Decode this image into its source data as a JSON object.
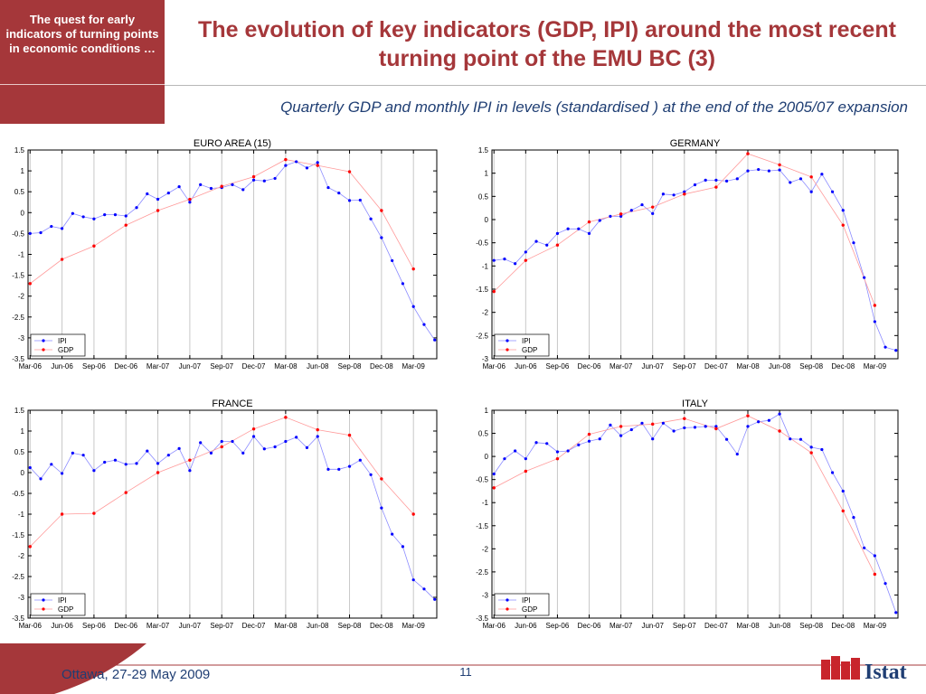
{
  "sidebar": {
    "text": "The quest for early indicators of turning points in economic conditions …"
  },
  "title": "The evolution of key indicators (GDP, IPI) around the most recent  turning point of the EMU BC (3)",
  "subtitle": "Quarterly GDP and monthly IPI in levels (standardised ) at the end of the 2005/07 expansion",
  "footer": {
    "text": "Ottawa, 27-29 May 2009",
    "page": "11",
    "logo_text": "Istat"
  },
  "colors": {
    "brand": "#a5373a",
    "ipi": "#0000ff",
    "gdp": "#ff0000",
    "text_blue": "#1f3e73"
  },
  "chart_data": [
    {
      "type": "line",
      "title": "EURO AREA (15)",
      "xticks": [
        "Mar-06",
        "Jun-06",
        "Sep-06",
        "Dec-06",
        "Mar-07",
        "Jun-07",
        "Sep-07",
        "Dec-07",
        "Mar-08",
        "Jun-08",
        "Sep-08",
        "Dec-08",
        "Mar-09"
      ],
      "yticks": [
        "1.5",
        "1",
        "0.5",
        "0",
        "-0.5",
        "-1",
        "-1.5",
        "-2",
        "-2.5",
        "-3",
        "-3.5"
      ],
      "ylim": [
        -3.5,
        1.5
      ],
      "legend": [
        "IPI",
        "GDP"
      ],
      "legend_position": "bottom-left",
      "series": [
        {
          "name": "IPI",
          "values": [
            -0.5,
            -0.48,
            -0.33,
            -0.38,
            -0.02,
            -0.1,
            -0.15,
            -0.05,
            -0.05,
            -0.08,
            0.12,
            0.45,
            0.32,
            0.47,
            0.62,
            0.25,
            0.67,
            0.58,
            0.6,
            0.67,
            0.55,
            0.78,
            0.76,
            0.82,
            1.13,
            1.22,
            1.07,
            1.2,
            0.6,
            0.47,
            0.29,
            0.3,
            -0.15,
            -0.6,
            -1.15,
            -1.7,
            -2.25,
            -2.68,
            -3.05
          ]
        },
        {
          "name": "GDP",
          "values": [
            -1.7,
            -1.12,
            -0.8,
            -0.3,
            0.05,
            0.32,
            0.63,
            0.86,
            1.27,
            1.13,
            0.98,
            0.05,
            -1.35
          ]
        }
      ]
    },
    {
      "type": "line",
      "title": "GERMANY",
      "xticks": [
        "Mar-06",
        "Jun-06",
        "Sep-06",
        "Dec-06",
        "Mar-07",
        "Jun-07",
        "Sep-07",
        "Dec-07",
        "Mar-08",
        "Jun-08",
        "Sep-08",
        "Dec-08",
        "Mar-09"
      ],
      "yticks": [
        "1.5",
        "1",
        "0.5",
        "0",
        "-0.5",
        "-1",
        "-1.5",
        "-2",
        "-2.5",
        "-3"
      ],
      "ylim": [
        -3,
        1.5
      ],
      "legend": [
        "IPI",
        "GDP"
      ],
      "legend_position": "bottom-left",
      "series": [
        {
          "name": "IPI",
          "values": [
            -0.88,
            -0.85,
            -0.95,
            -0.7,
            -0.47,
            -0.55,
            -0.3,
            -0.2,
            -0.2,
            -0.3,
            -0.02,
            0.07,
            0.07,
            0.2,
            0.32,
            0.13,
            0.55,
            0.53,
            0.6,
            0.75,
            0.85,
            0.85,
            0.83,
            0.88,
            1.05,
            1.08,
            1.05,
            1.07,
            0.8,
            0.88,
            0.6,
            0.98,
            0.6,
            0.2,
            -0.5,
            -1.25,
            -2.2,
            -2.75,
            -2.82
          ]
        },
        {
          "name": "GDP",
          "values": [
            -1.55,
            -0.88,
            -0.55,
            -0.05,
            0.12,
            0.27,
            0.55,
            0.7,
            1.42,
            1.18,
            0.92,
            -0.12,
            -1.85
          ]
        }
      ]
    },
    {
      "type": "line",
      "title": "FRANCE",
      "xticks": [
        "Mar-06",
        "Jun-06",
        "Sep-06",
        "Dec-06",
        "Mar-07",
        "Jun-07",
        "Sep-07",
        "Dec-07",
        "Mar-08",
        "Jun-08",
        "Sep-08",
        "Dec-08",
        "Mar-09"
      ],
      "yticks": [
        "1.5",
        "1",
        "0.5",
        "0",
        "-0.5",
        "-1",
        "-1.5",
        "-2",
        "-2.5",
        "-3",
        "-3.5"
      ],
      "ylim": [
        -3.5,
        1.5
      ],
      "legend": [
        "IPI",
        "GDP"
      ],
      "legend_position": "bottom-left",
      "series": [
        {
          "name": "IPI",
          "values": [
            0.12,
            -0.15,
            0.2,
            -0.02,
            0.47,
            0.42,
            0.05,
            0.25,
            0.3,
            0.2,
            0.22,
            0.52,
            0.22,
            0.42,
            0.58,
            0.05,
            0.72,
            0.47,
            0.75,
            0.75,
            0.47,
            0.87,
            0.57,
            0.62,
            0.75,
            0.85,
            0.6,
            0.87,
            0.08,
            0.08,
            0.15,
            0.3,
            -0.05,
            -0.85,
            -1.48,
            -1.78,
            -2.58,
            -2.8,
            -3.05
          ]
        },
        {
          "name": "GDP",
          "values": [
            -1.78,
            -1.0,
            -0.98,
            -0.48,
            0.0,
            0.3,
            0.62,
            1.05,
            1.33,
            1.03,
            0.9,
            -0.15,
            -1.0
          ]
        }
      ]
    },
    {
      "type": "line",
      "title": "ITALY",
      "xticks": [
        "Mar-06",
        "Jun-06",
        "Sep-06",
        "Dec-06",
        "Mar-07",
        "Jun-07",
        "Sep-07",
        "Dec-07",
        "Mar-08",
        "Jun-08",
        "Sep-08",
        "Dec-08",
        "Mar-09"
      ],
      "yticks": [
        "1",
        "0.5",
        "0",
        "-0.5",
        "-1",
        "-1.5",
        "-2",
        "-2.5",
        "-3",
        "-3.5"
      ],
      "ylim": [
        -3.5,
        1
      ],
      "legend": [
        "IPI",
        "GDP"
      ],
      "legend_position": "bottom-left",
      "series": [
        {
          "name": "IPI",
          "values": [
            -0.38,
            -0.05,
            0.12,
            -0.05,
            0.3,
            0.28,
            0.1,
            0.12,
            0.25,
            0.33,
            0.38,
            0.68,
            0.45,
            0.58,
            0.72,
            0.38,
            0.72,
            0.55,
            0.62,
            0.63,
            0.65,
            0.65,
            0.37,
            0.05,
            0.65,
            0.75,
            0.78,
            0.92,
            0.38,
            0.37,
            0.2,
            0.15,
            -0.35,
            -0.75,
            -1.32,
            -1.98,
            -2.15,
            -2.75,
            -3.38
          ]
        },
        {
          "name": "GDP",
          "values": [
            -0.68,
            -0.32,
            -0.05,
            0.48,
            0.65,
            0.7,
            0.82,
            0.6,
            0.88,
            0.55,
            0.08,
            -1.18,
            -2.55
          ]
        }
      ]
    }
  ]
}
